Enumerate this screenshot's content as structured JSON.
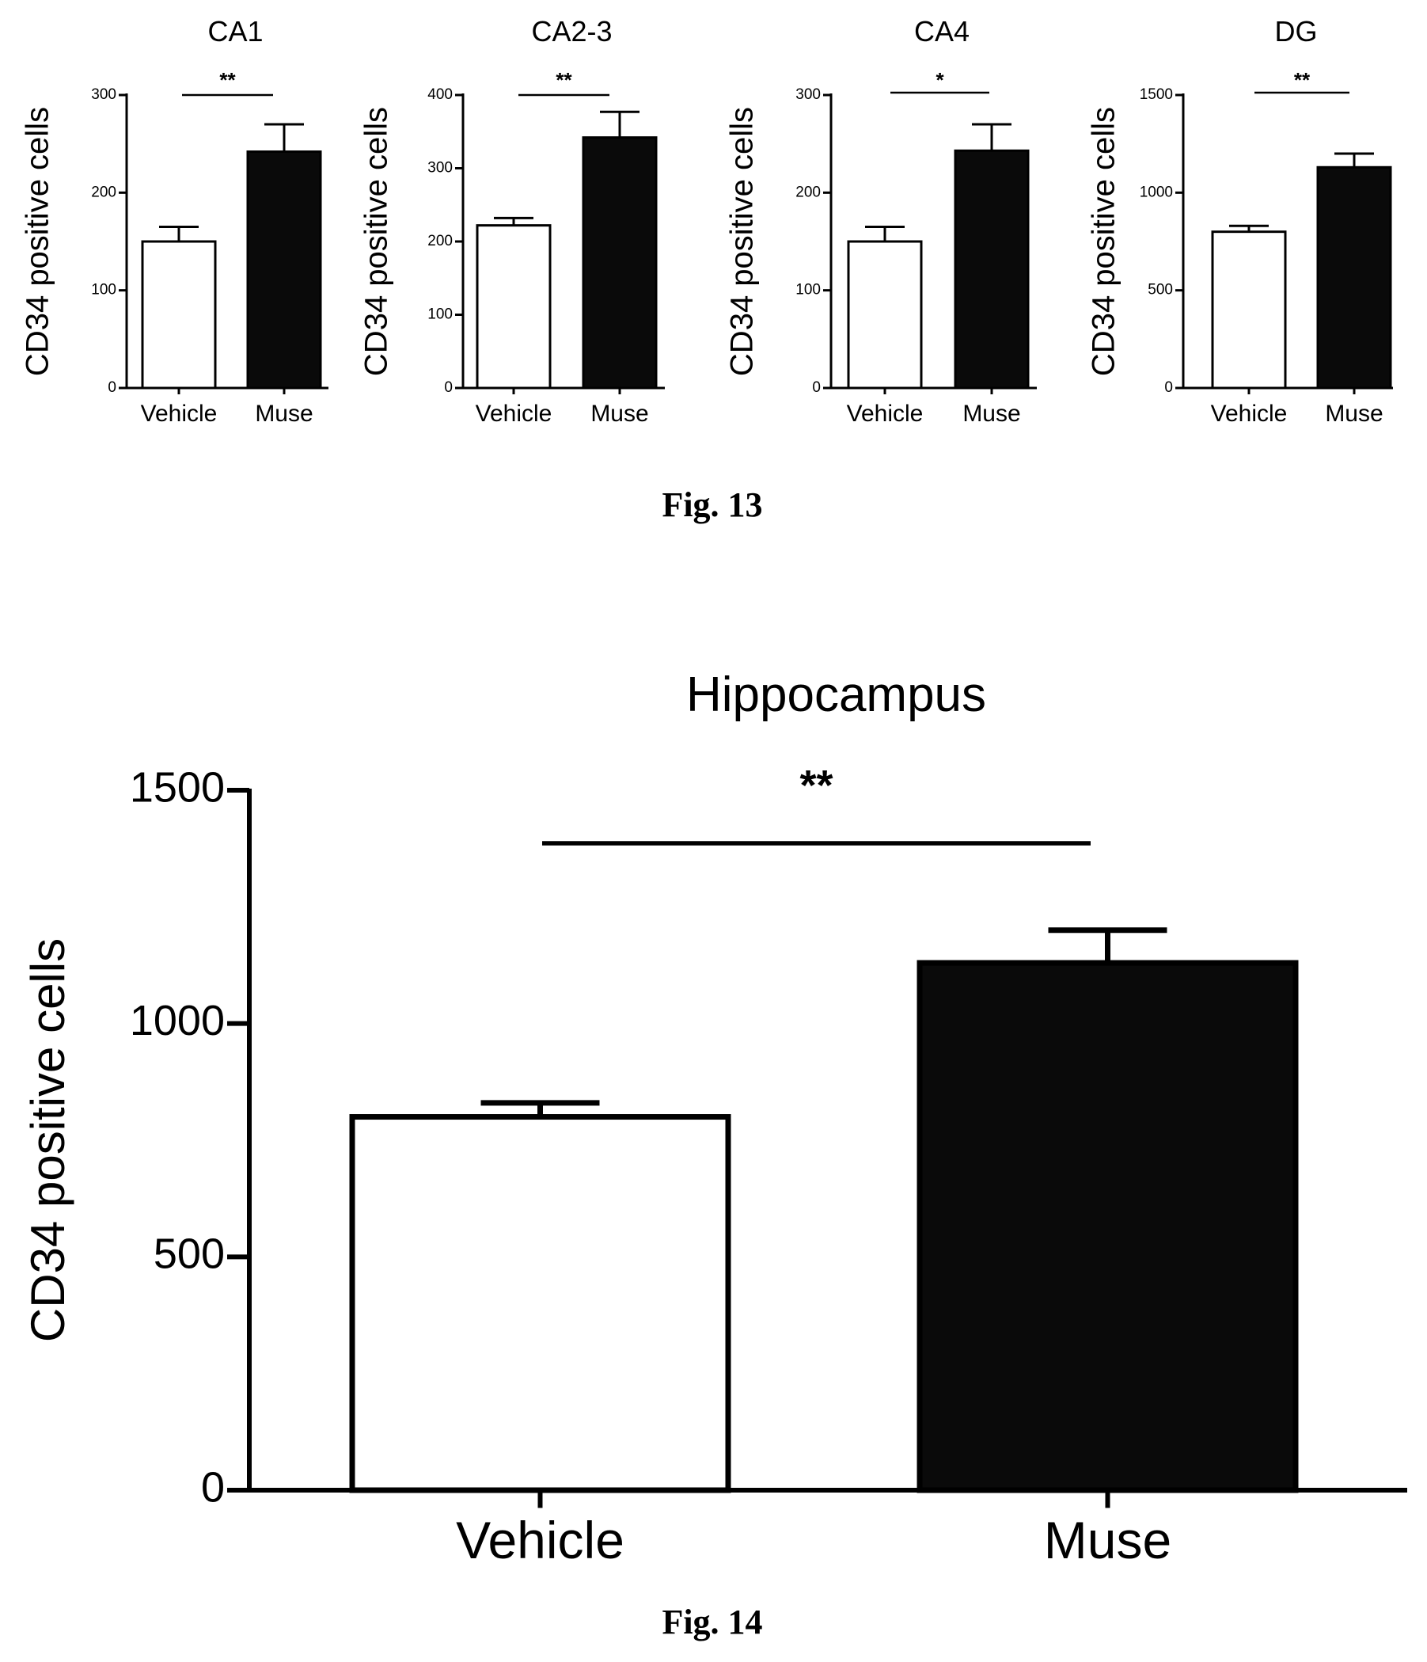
{
  "chart_data": [
    {
      "id": "fig13-ca1",
      "type": "bar",
      "title": "CA1",
      "ylabel": "CD34 positive cells",
      "xlabel": "",
      "categories": [
        "Vehicle",
        "Muse"
      ],
      "values": [
        150,
        242
      ],
      "errors": [
        15,
        28
      ],
      "ylim": [
        0,
        300
      ],
      "yticks": [
        0,
        100,
        200,
        300
      ],
      "significance": "**",
      "bar_styles": [
        "open",
        "filled"
      ],
      "grid": false,
      "legend": "none"
    },
    {
      "id": "fig13-ca23",
      "type": "bar",
      "title": "CA2-3",
      "ylabel": "CD34 positive cells",
      "xlabel": "",
      "categories": [
        "Vehicle",
        "Muse"
      ],
      "values": [
        222,
        342
      ],
      "errors": [
        10,
        35
      ],
      "ylim": [
        0,
        400
      ],
      "yticks": [
        0,
        100,
        200,
        300,
        400
      ],
      "significance": "**",
      "bar_styles": [
        "open",
        "filled"
      ],
      "grid": false,
      "legend": "none"
    },
    {
      "id": "fig13-ca4",
      "type": "bar",
      "title": "CA4",
      "ylabel": "CD34 positive cells",
      "xlabel": "",
      "categories": [
        "Vehicle",
        "Muse"
      ],
      "values": [
        150,
        243
      ],
      "errors": [
        15,
        27
      ],
      "ylim": [
        0,
        300
      ],
      "yticks": [
        0,
        100,
        200,
        300
      ],
      "significance": "*",
      "bar_styles": [
        "open",
        "filled"
      ],
      "grid": false,
      "legend": "none"
    },
    {
      "id": "fig13-dg",
      "type": "bar",
      "title": "DG",
      "ylabel": "CD34 positive cells",
      "xlabel": "",
      "categories": [
        "Vehicle",
        "Muse"
      ],
      "values": [
        800,
        1130
      ],
      "errors": [
        30,
        70
      ],
      "ylim": [
        0,
        1500
      ],
      "yticks": [
        0,
        500,
        1000,
        1500
      ],
      "significance": "**",
      "bar_styles": [
        "open",
        "filled"
      ],
      "grid": false,
      "legend": "none"
    },
    {
      "id": "fig14-hippocampus",
      "type": "bar",
      "title": "Hippocampus",
      "ylabel": "CD34 positive cells",
      "xlabel": "",
      "categories": [
        "Vehicle",
        "Muse"
      ],
      "values": [
        800,
        1130
      ],
      "errors": [
        30,
        70
      ],
      "ylim": [
        0,
        1500
      ],
      "yticks": [
        0,
        500,
        1000,
        1500
      ],
      "significance": "**",
      "bar_styles": [
        "open",
        "filled"
      ],
      "grid": false,
      "legend": "none"
    }
  ],
  "captions": {
    "fig13": "Fig. 13",
    "fig14": "Fig. 14"
  }
}
